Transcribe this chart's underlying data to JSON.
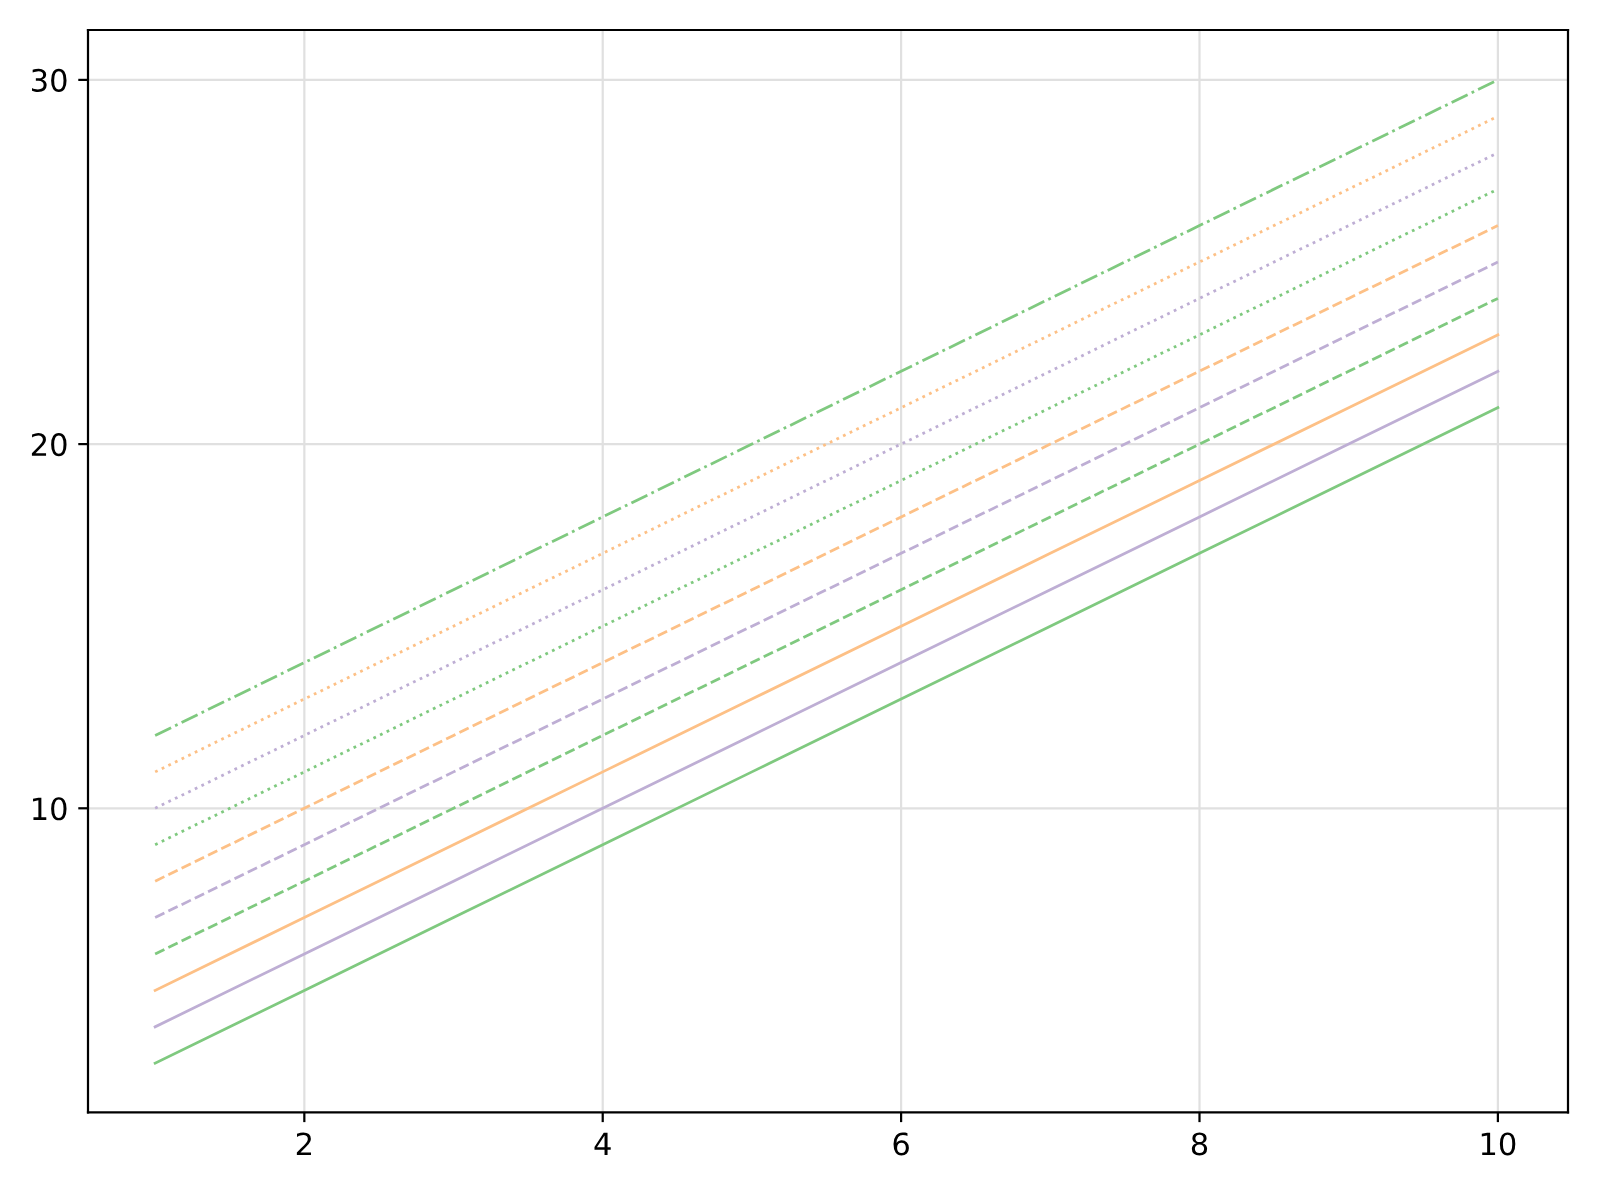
{
  "chart_data": {
    "type": "line",
    "x": [
      1,
      2,
      3,
      4,
      5,
      6,
      7,
      8,
      9,
      10
    ],
    "xlim": [
      0.55,
      10.47
    ],
    "xticks": [
      2,
      4,
      6,
      8,
      10
    ],
    "ylim": [
      1.65,
      31.37
    ],
    "yticks": [
      10,
      20,
      30
    ],
    "grid": true,
    "marker": "none",
    "series": [
      {
        "color": "#7fc97f",
        "line_style": "solid",
        "values": [
          3,
          5,
          7,
          9,
          11,
          13,
          15,
          17,
          19,
          21
        ]
      },
      {
        "color": "#beaed4",
        "line_style": "solid",
        "values": [
          4,
          6,
          8,
          10,
          12,
          14,
          16,
          18,
          20,
          22
        ]
      },
      {
        "color": "#fdc086",
        "line_style": "solid",
        "values": [
          5,
          7,
          9,
          11,
          13,
          15,
          17,
          19,
          21,
          23
        ]
      },
      {
        "color": "#7fc97f",
        "line_style": "dashed",
        "values": [
          6,
          8,
          10,
          12,
          14,
          16,
          18,
          20,
          22,
          24
        ]
      },
      {
        "color": "#beaed4",
        "line_style": "dashed",
        "values": [
          7,
          9,
          11,
          13,
          15,
          17,
          19,
          21,
          23,
          25
        ]
      },
      {
        "color": "#fdc086",
        "line_style": "dashed",
        "values": [
          8,
          10,
          12,
          14,
          16,
          18,
          20,
          22,
          24,
          26
        ]
      },
      {
        "color": "#7fc97f",
        "line_style": "dotted",
        "values": [
          9,
          11,
          13,
          15,
          17,
          19,
          21,
          23,
          25,
          27
        ]
      },
      {
        "color": "#beaed4",
        "line_style": "dotted",
        "values": [
          10,
          12,
          14,
          16,
          18,
          20,
          22,
          24,
          26,
          28
        ]
      },
      {
        "color": "#fdc086",
        "line_style": "dotted",
        "values": [
          11,
          13,
          15,
          17,
          19,
          21,
          23,
          25,
          27,
          29
        ]
      },
      {
        "color": "#7fc97f",
        "line_style": "dashdot",
        "values": [
          12,
          14,
          16,
          18,
          20,
          22,
          24,
          26,
          28,
          30
        ]
      }
    ]
  }
}
